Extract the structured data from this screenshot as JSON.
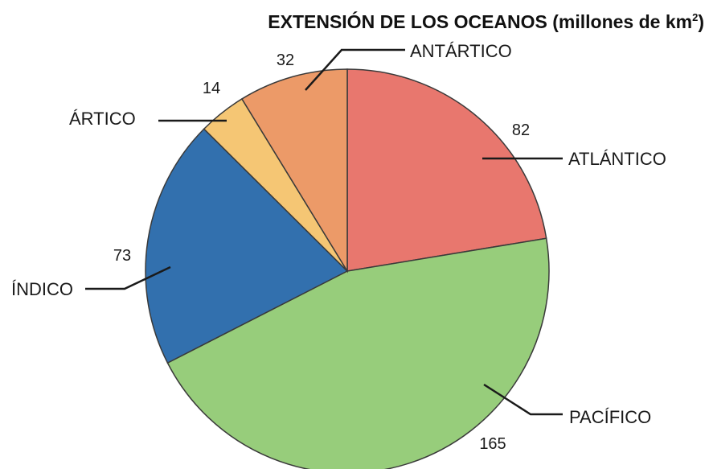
{
  "chart_data": {
    "type": "pie",
    "title": "EXTENSIÓN DE LOS OCEANOS (millones de km",
    "title_superscript": "2",
    "title_close": ")",
    "slices": [
      {
        "label": "ATLÁNTICO",
        "value": 82,
        "color": "#e8776e"
      },
      {
        "label": "PACÍFICO",
        "value": 165,
        "color": "#97cd7b"
      },
      {
        "label": "ÍNDICO",
        "value": 73,
        "color": "#3270ae"
      },
      {
        "label": "ÁRTICO",
        "value": 14,
        "color": "#f5c674"
      },
      {
        "label": "ANTÁRTICO",
        "value": 32,
        "color": "#ec9a68"
      }
    ]
  }
}
